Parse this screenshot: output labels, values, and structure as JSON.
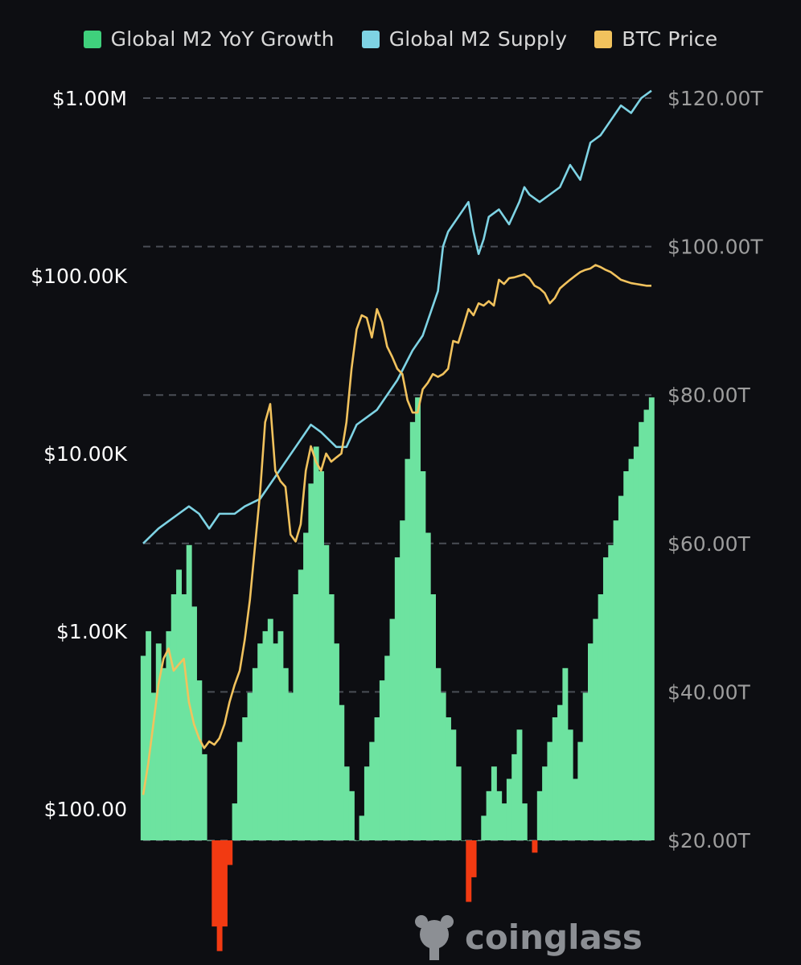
{
  "legend": {
    "growth_label": "Global M2 YoY Growth",
    "supply_label": "Global M2 Supply",
    "btc_label": "BTC Price"
  },
  "watermark": {
    "text": "coinglass"
  },
  "colors": {
    "growth_positive": "#6de3a0",
    "growth_negative": "#f23a12",
    "supply": "#7ed3e4",
    "btc": "#f1c25d",
    "grid": "#4a4d55",
    "background": "#0d0e12"
  },
  "chart_data": {
    "type": "combo",
    "left_axis": {
      "scale": "log",
      "ticks": [
        {
          "value": 100,
          "label": "$100.00"
        },
        {
          "value": 1000,
          "label": "$1.00K"
        },
        {
          "value": 10000,
          "label": "$10.00K"
        },
        {
          "value": 100000,
          "label": "$100.00K"
        },
        {
          "value": 1000000,
          "label": "$1.00M"
        }
      ]
    },
    "right_axis": {
      "scale": "linear",
      "range": [
        20,
        120
      ],
      "ticks": [
        {
          "value": 20,
          "label": "$20.00T"
        },
        {
          "value": 40,
          "label": "$40.00T"
        },
        {
          "value": 60,
          "label": "$60.00T"
        },
        {
          "value": 80,
          "label": "$80.00T"
        },
        {
          "value": 100,
          "label": "$100.00T"
        },
        {
          "value": 120,
          "label": "$120.00T"
        }
      ]
    },
    "growth_axis_range": [
      -25,
      40
    ],
    "x_range": [
      0,
      100
    ],
    "legend_position": "top-center",
    "series": [
      {
        "name": "Global M2 YoY Growth",
        "type": "area",
        "x": [
          0,
          1,
          2,
          3,
          4,
          5,
          6,
          7,
          8,
          9,
          10,
          11,
          12,
          13,
          14,
          15,
          16,
          17,
          18,
          19,
          20,
          21,
          22,
          23,
          24,
          25,
          26,
          27,
          28,
          29,
          30,
          31,
          32,
          33,
          34,
          35,
          36,
          37,
          38,
          39,
          40,
          41,
          42,
          43,
          44,
          45,
          46,
          47,
          48,
          49,
          50,
          51,
          52,
          53,
          54,
          55,
          56,
          57,
          58,
          59,
          60,
          61,
          62,
          63,
          64,
          65,
          66,
          67,
          68,
          69,
          70,
          71,
          72,
          73,
          74,
          75,
          76,
          77,
          78,
          79,
          80,
          81,
          82,
          83,
          84,
          85,
          86,
          87,
          88,
          89,
          90,
          91,
          92,
          93,
          94,
          95,
          96,
          97,
          98,
          99,
          100
        ],
        "values": [
          15,
          17,
          12,
          16,
          14,
          17,
          20,
          22,
          20,
          24,
          19,
          13,
          7,
          0,
          -7,
          -9,
          -7,
          -2,
          3,
          8,
          10,
          12,
          14,
          16,
          17,
          18,
          16,
          17,
          14,
          12,
          20,
          22,
          25,
          29,
          32,
          30,
          24,
          20,
          16,
          11,
          6,
          4,
          0,
          2,
          6,
          8,
          10,
          13,
          15,
          18,
          23,
          26,
          31,
          34,
          36,
          30,
          25,
          20,
          14,
          12,
          10,
          9,
          6,
          0,
          -5,
          -3,
          0,
          2,
          4,
          6,
          4,
          3,
          5,
          7,
          9,
          3,
          0,
          -1,
          4,
          6,
          8,
          10,
          11,
          14,
          9,
          5,
          8,
          12,
          16,
          18,
          20,
          23,
          24,
          26,
          28,
          30,
          31,
          32,
          34,
          35,
          36
        ]
      },
      {
        "name": "Global M2 Supply",
        "type": "line",
        "x": [
          0,
          3,
          5,
          7,
          9,
          11,
          13,
          15,
          18,
          20,
          23,
          25,
          27,
          30,
          33,
          35,
          38,
          40,
          42,
          44,
          46,
          48,
          50,
          53,
          55,
          57,
          58,
          59,
          60,
          61,
          62,
          63,
          64,
          65,
          66,
          67,
          68,
          70,
          72,
          74,
          75,
          76,
          78,
          80,
          82,
          84,
          86,
          88,
          90,
          92,
          94,
          96,
          98,
          100
        ],
        "values": [
          60,
          62,
          63,
          64,
          65,
          64,
          62,
          64,
          64,
          65,
          66,
          68,
          70,
          73,
          76,
          75,
          73,
          73,
          76,
          77,
          78,
          80,
          82,
          86,
          88,
          92,
          94,
          100,
          102,
          103,
          104,
          105,
          106,
          102,
          99,
          101,
          104,
          105,
          103,
          106,
          108,
          107,
          106,
          107,
          108,
          111,
          109,
          114,
          115,
          117,
          119,
          118,
          120,
          121
        ]
      },
      {
        "name": "BTC Price",
        "type": "line",
        "x": [
          0,
          1,
          2,
          3,
          4,
          5,
          6,
          7,
          8,
          9,
          10,
          11,
          12,
          13,
          14,
          15,
          16,
          17,
          18,
          19,
          20,
          21,
          22,
          23,
          24,
          25,
          26,
          27,
          28,
          29,
          30,
          31,
          32,
          33,
          34,
          35,
          36,
          37,
          38,
          39,
          40,
          41,
          42,
          43,
          44,
          45,
          46,
          47,
          48,
          49,
          50,
          51,
          52,
          53,
          54,
          55,
          56,
          57,
          58,
          59,
          60,
          61,
          62,
          63,
          64,
          65,
          66,
          67,
          68,
          69,
          70,
          71,
          72,
          73,
          74,
          75,
          76,
          77,
          78,
          79,
          80,
          81,
          82,
          83,
          84,
          85,
          86,
          87,
          88,
          89,
          90,
          91,
          92,
          93,
          94,
          95,
          96,
          97,
          98,
          99,
          100
        ],
        "values": [
          120,
          180,
          300,
          500,
          700,
          800,
          600,
          650,
          700,
          400,
          300,
          250,
          220,
          240,
          230,
          250,
          300,
          400,
          500,
          600,
          900,
          1500,
          3000,
          6000,
          15000,
          19000,
          8000,
          7000,
          6500,
          3500,
          3200,
          4000,
          8000,
          11000,
          9000,
          8000,
          10000,
          9000,
          9500,
          10000,
          15000,
          30000,
          50000,
          60000,
          58000,
          45000,
          65000,
          55000,
          40000,
          35000,
          30000,
          28000,
          20000,
          17000,
          17000,
          23000,
          25000,
          28000,
          27000,
          28000,
          30000,
          43000,
          42000,
          52000,
          65000,
          60000,
          70000,
          68000,
          72000,
          68000,
          95000,
          90000,
          97000,
          98000,
          100000,
          102000,
          97000,
          88000,
          85000,
          80000,
          70000,
          75000,
          85000,
          90000,
          95000,
          100000,
          105000,
          108000,
          110000,
          115000,
          112000,
          108000,
          105000,
          100000,
          95000,
          93000,
          91000,
          90000,
          89000,
          88000,
          88000
        ]
      }
    ]
  }
}
